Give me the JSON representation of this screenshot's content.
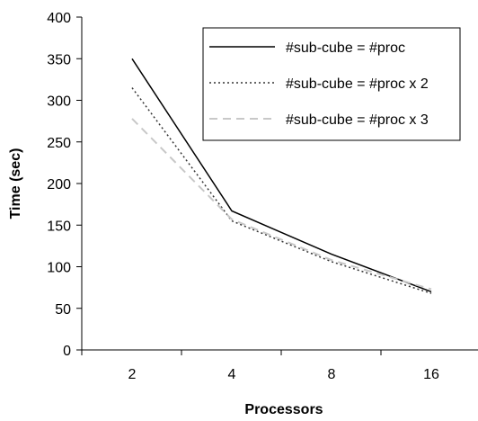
{
  "chart_data": {
    "type": "line",
    "title": "",
    "xlabel": "Processors",
    "ylabel": "Time (sec)",
    "categories": [
      "2",
      "4",
      "8",
      "16"
    ],
    "ylim": [
      0,
      400
    ],
    "yticks": [
      0,
      50,
      100,
      150,
      200,
      250,
      300,
      350,
      400
    ],
    "grid": false,
    "legend_position": "top-right",
    "series": [
      {
        "name": "#sub-cube = #proc",
        "values": [
          350,
          167,
          115,
          70
        ],
        "color": "#000000",
        "style": "solid"
      },
      {
        "name": "#sub-cube = #proc x 2",
        "values": [
          315,
          155,
          106,
          68
        ],
        "color": "#333333",
        "style": "dotted"
      },
      {
        "name": "#sub-cube = #proc x 3",
        "values": [
          278,
          157,
          108,
          73
        ],
        "color": "#c8c8c8",
        "style": "dashed"
      }
    ]
  }
}
